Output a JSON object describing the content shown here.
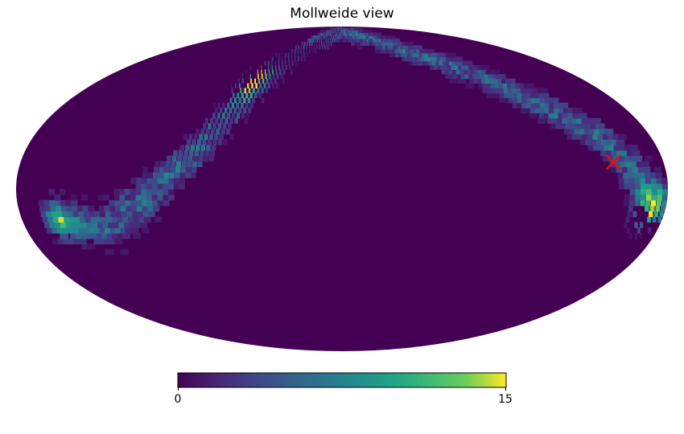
{
  "chart_data": {
    "type": "heatmap",
    "projection": "mollweide",
    "title": "Mollweide view",
    "colormap": "viridis",
    "colorbar": {
      "min": 0,
      "max": 15,
      "tick_labels": [
        "0",
        "15"
      ],
      "orientation": "horizontal",
      "placement": "bottom"
    },
    "background_value": 0,
    "band_path_lon_lat_deg": [
      [
        -160,
        -12
      ],
      [
        -135,
        -18
      ],
      [
        -110,
        -5
      ],
      [
        -85,
        15
      ],
      [
        -65,
        42
      ],
      [
        -40,
        75
      ],
      [
        0,
        85
      ],
      [
        40,
        80
      ],
      [
        100,
        58
      ],
      [
        150,
        25
      ],
      [
        168,
        0
      ],
      [
        180,
        -8
      ]
    ],
    "hotspots": [
      {
        "lon_deg": -65,
        "lat_deg": 55,
        "value": 15
      },
      {
        "lon_deg": -68,
        "lat_deg": 48,
        "value": 11
      },
      {
        "lon_deg": -158,
        "lat_deg": -16,
        "value": 9
      },
      {
        "lon_deg": 170,
        "lat_deg": -11,
        "value": 10
      },
      {
        "lon_deg": 172,
        "lat_deg": -5,
        "value": 8
      }
    ],
    "marker": {
      "symbol": "x",
      "color": "#e01010",
      "lon_deg": 152,
      "lat_deg": 12
    }
  }
}
